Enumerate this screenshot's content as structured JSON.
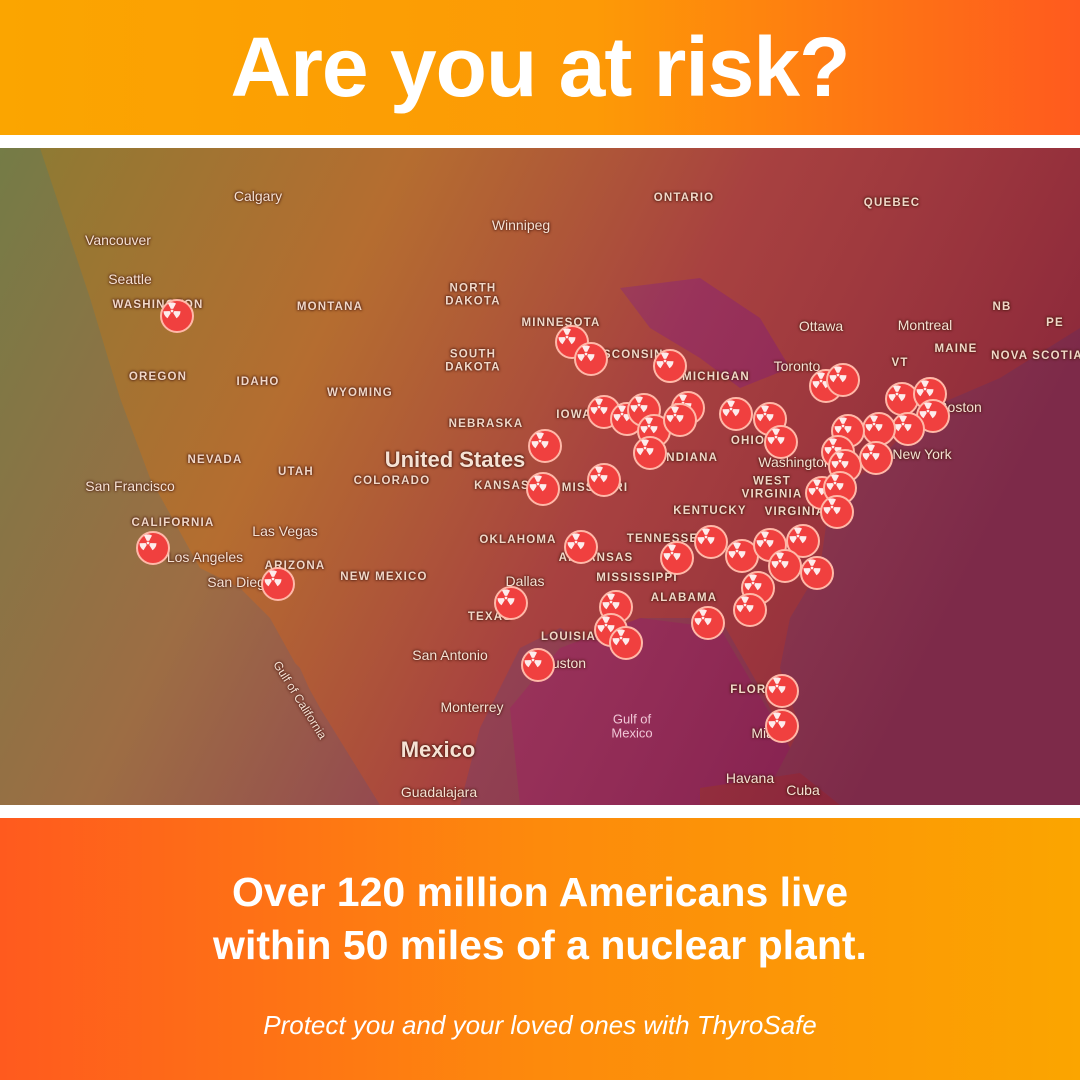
{
  "header": {
    "title": "Are you at risk?"
  },
  "map": {
    "marker_icon": "radiation-icon",
    "marker_color": "#f0403f",
    "labels": [
      "Calgary",
      "Vancouver",
      "Seattle",
      "WASHINGTON",
      "MONTANA",
      "OREGON",
      "IDAHO",
      "WYOMING",
      "NORTH\nDAKOTA",
      "SOUTH\nDAKOTA",
      "MINNESOTA",
      "WISCONSIN",
      "MICHIGAN",
      "Winnipeg",
      "ONTARIO",
      "QUEBEC",
      "Ottawa",
      "Montreal",
      "NB",
      "PE",
      "MAINE",
      "NOVA SCOTIA",
      "VT",
      "Toronto",
      "NEBRASKA",
      "IOWA",
      "United States",
      "NEVADA",
      "UTAH",
      "COLORADO",
      "KANSAS",
      "MISSOURI",
      "INDIANA",
      "OHIO",
      "Washington",
      "New York",
      "Boston",
      "WEST\nVIRGINIA",
      "KENTUCKY",
      "VIRGINIA",
      "San Francisco",
      "CALIFORNIA",
      "Las Vegas",
      "Los Angeles",
      "San Diego",
      "ARIZONA",
      "NEW MEXICO",
      "OKLAHOMA",
      "ARKANSAS",
      "TENNESSEE",
      "MISSISSIPPI",
      "ALABAMA",
      "Dallas",
      "TEXAS",
      "LOUISIANA",
      "San Antonio",
      "Houston",
      "Monterrey",
      "Gulf of\nMexico",
      "Mexico",
      "Gulf of California",
      "FLORIDA",
      "Miami",
      "Havana",
      "Cuba",
      "Guadalajara"
    ]
  },
  "footer": {
    "headline_line1": "Over 120 million Americans live",
    "headline_line2": "within 50 miles of a nuclear plant.",
    "tagline": "Protect you and your loved ones with ThyroSafe"
  }
}
